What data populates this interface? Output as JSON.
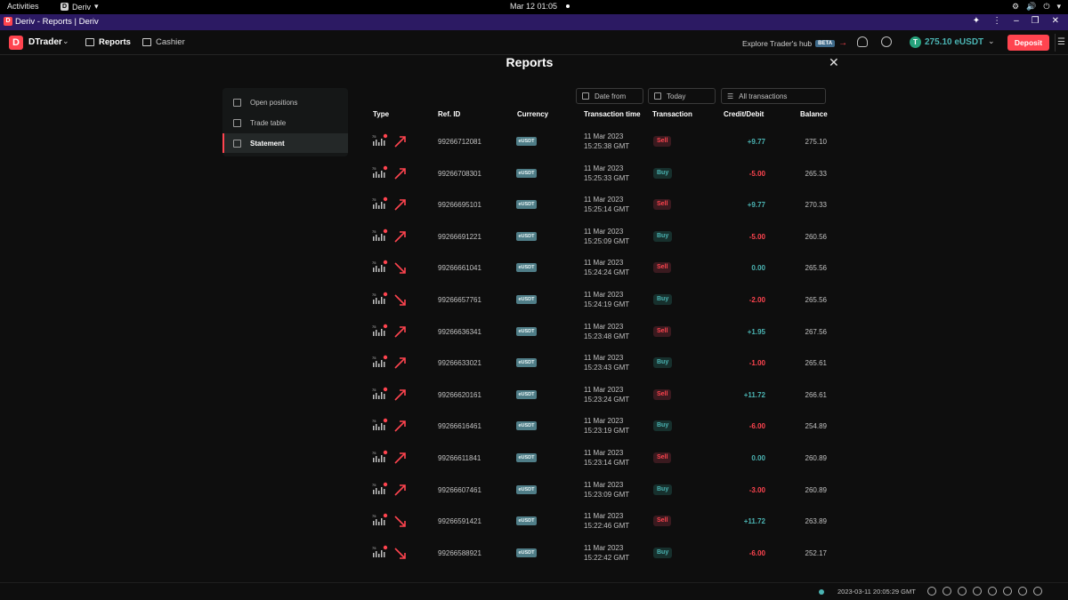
{
  "os": {
    "activities": "Activities",
    "app_name": "Deriv",
    "app_chevron": "▾",
    "clock": "Mar 12  01:05",
    "tray": [
      "⚙",
      "🔊",
      "⏻",
      "▾"
    ]
  },
  "browser": {
    "favicon": "D",
    "tab_title": "Deriv - Reports | Deriv",
    "controls": [
      "extension-icon",
      "kebab-menu-icon",
      "minimize-icon",
      "restore-icon",
      "close-icon"
    ]
  },
  "header": {
    "logo": "D",
    "brand": "DTrader",
    "nav_reports": "Reports",
    "nav_cashier": "Cashier",
    "explore": "Explore Trader's hub",
    "beta": "BETA",
    "arrow": "→",
    "currency_icon": "T",
    "balance": "275.10 eUSDT",
    "deposit": "Deposit",
    "menu": "☰"
  },
  "page": {
    "title": "Reports",
    "close": "✕"
  },
  "sidebar": {
    "items": [
      {
        "label": "Open positions",
        "active": false
      },
      {
        "label": "Trade table",
        "active": false
      },
      {
        "label": "Statement",
        "active": true
      }
    ]
  },
  "filters": {
    "date_from": "Date from",
    "date_to": "Today",
    "transactions": "All transactions"
  },
  "table": {
    "headers": {
      "type": "Type",
      "ref": "Ref. ID",
      "currency": "Currency",
      "time": "Transaction time",
      "transaction": "Transaction",
      "amount": "Credit/Debit",
      "balance": "Balance"
    },
    "currency_label": "eUSDT",
    "rows": [
      {
        "dir": "up",
        "ref": "99266712081",
        "date": "11 Mar 2023",
        "time": "15:25:38 GMT",
        "tx": "Sell",
        "amount": "+9.77",
        "sign": "pos",
        "balance": "275.10"
      },
      {
        "dir": "up",
        "ref": "99266708301",
        "date": "11 Mar 2023",
        "time": "15:25:33 GMT",
        "tx": "Buy",
        "amount": "-5.00",
        "sign": "neg",
        "balance": "265.33"
      },
      {
        "dir": "up",
        "ref": "99266695101",
        "date": "11 Mar 2023",
        "time": "15:25:14 GMT",
        "tx": "Sell",
        "amount": "+9.77",
        "sign": "pos",
        "balance": "270.33"
      },
      {
        "dir": "up",
        "ref": "99266691221",
        "date": "11 Mar 2023",
        "time": "15:25:09 GMT",
        "tx": "Buy",
        "amount": "-5.00",
        "sign": "neg",
        "balance": "260.56"
      },
      {
        "dir": "down",
        "ref": "99266661041",
        "date": "11 Mar 2023",
        "time": "15:24:24 GMT",
        "tx": "Sell",
        "amount": "0.00",
        "sign": "zero",
        "balance": "265.56"
      },
      {
        "dir": "down",
        "ref": "99266657761",
        "date": "11 Mar 2023",
        "time": "15:24:19 GMT",
        "tx": "Buy",
        "amount": "-2.00",
        "sign": "neg",
        "balance": "265.56"
      },
      {
        "dir": "up",
        "ref": "99266636341",
        "date": "11 Mar 2023",
        "time": "15:23:48 GMT",
        "tx": "Sell",
        "amount": "+1.95",
        "sign": "pos",
        "balance": "267.56"
      },
      {
        "dir": "up",
        "ref": "99266633021",
        "date": "11 Mar 2023",
        "time": "15:23:43 GMT",
        "tx": "Buy",
        "amount": "-1.00",
        "sign": "neg",
        "balance": "265.61"
      },
      {
        "dir": "up",
        "ref": "99266620161",
        "date": "11 Mar 2023",
        "time": "15:23:24 GMT",
        "tx": "Sell",
        "amount": "+11.72",
        "sign": "pos",
        "balance": "266.61"
      },
      {
        "dir": "up",
        "ref": "99266616461",
        "date": "11 Mar 2023",
        "time": "15:23:19 GMT",
        "tx": "Buy",
        "amount": "-6.00",
        "sign": "neg",
        "balance": "254.89"
      },
      {
        "dir": "up",
        "ref": "99266611841",
        "date": "11 Mar 2023",
        "time": "15:23:14 GMT",
        "tx": "Sell",
        "amount": "0.00",
        "sign": "zero",
        "balance": "260.89"
      },
      {
        "dir": "up",
        "ref": "99266607461",
        "date": "11 Mar 2023",
        "time": "15:23:09 GMT",
        "tx": "Buy",
        "amount": "-3.00",
        "sign": "neg",
        "balance": "260.89"
      },
      {
        "dir": "down",
        "ref": "99266591421",
        "date": "11 Mar 2023",
        "time": "15:22:46 GMT",
        "tx": "Sell",
        "amount": "+11.72",
        "sign": "pos",
        "balance": "263.89"
      },
      {
        "dir": "down",
        "ref": "99266588921",
        "date": "11 Mar 2023",
        "time": "15:22:42 GMT",
        "tx": "Buy",
        "amount": "-6.00",
        "sign": "neg",
        "balance": "252.17"
      }
    ]
  },
  "footer": {
    "timestamp": "2023-03-11 20:05:29 GMT",
    "icons": [
      "whatsapp-icon",
      "chat-icon",
      "dark-mode-icon",
      "responsible-trading-icon",
      "help-icon",
      "language-icon",
      "settings-icon",
      "fullscreen-icon"
    ]
  },
  "colors": {
    "brand": "#ff444f",
    "profit": "#4bb4b3",
    "loss": "#ff444f",
    "browser_bar": "#2c1a63"
  }
}
